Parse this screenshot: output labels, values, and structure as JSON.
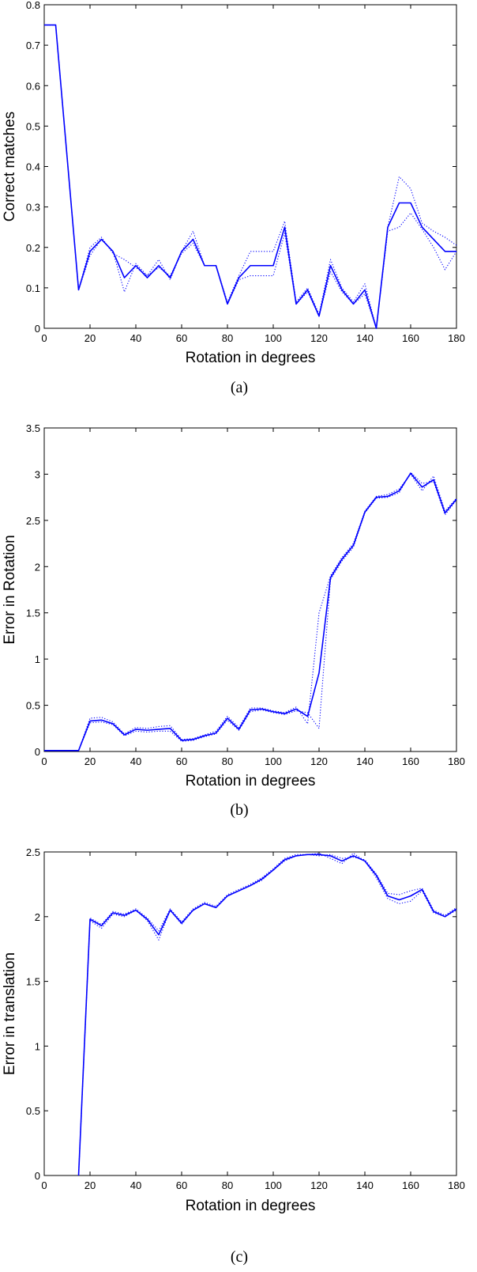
{
  "colors": {
    "series": "#0000ff",
    "axis": "#000000",
    "background": "#ffffff"
  },
  "chart_data": [
    {
      "type": "line",
      "caption": "(a)",
      "xlabel": "Rotation in degrees",
      "ylabel": "Correct matches",
      "xlim": [
        0,
        180
      ],
      "ylim": [
        0,
        0.8
      ],
      "xticks": [
        0,
        20,
        40,
        60,
        80,
        100,
        120,
        140,
        160,
        180
      ],
      "yticks": [
        0,
        0.1,
        0.2,
        0.3,
        0.4,
        0.5,
        0.6,
        0.7,
        0.8
      ],
      "ytick_labels": [
        "0",
        "0.1",
        "0.2",
        "0.3",
        "0.4",
        "0.5",
        "0.6",
        "0.7",
        "0.8"
      ],
      "grid": false,
      "x": [
        0,
        5,
        15,
        20,
        25,
        30,
        35,
        40,
        45,
        50,
        55,
        60,
        65,
        70,
        75,
        80,
        85,
        90,
        95,
        100,
        105,
        110,
        115,
        120,
        125,
        130,
        135,
        140,
        145,
        150,
        155,
        160,
        165,
        170,
        175,
        180
      ],
      "series": [
        {
          "style": "solid",
          "values": [
            0.75,
            0.75,
            0.095,
            0.19,
            0.22,
            0.19,
            0.125,
            0.155,
            0.125,
            0.155,
            0.125,
            0.19,
            0.22,
            0.155,
            0.155,
            0.06,
            0.125,
            0.155,
            0.155,
            0.155,
            0.25,
            0.06,
            0.095,
            0.03,
            0.155,
            0.095,
            0.06,
            0.095,
            0.0,
            0.25,
            0.31,
            0.31,
            0.25,
            0.22,
            0.19,
            0.19
          ]
        },
        {
          "style": "dotted",
          "values": [
            0.75,
            0.75,
            0.095,
            0.18,
            0.22,
            0.19,
            0.09,
            0.16,
            0.13,
            0.17,
            0.12,
            0.19,
            0.24,
            0.155,
            0.155,
            0.065,
            0.13,
            0.19,
            0.19,
            0.19,
            0.265,
            0.065,
            0.1,
            0.035,
            0.17,
            0.1,
            0.065,
            0.11,
            0.0,
            0.25,
            0.375,
            0.345,
            0.26,
            0.24,
            0.225,
            0.205
          ]
        },
        {
          "style": "dotted",
          "values": [
            0.75,
            0.75,
            0.095,
            0.2,
            0.225,
            0.185,
            0.17,
            0.15,
            0.13,
            0.15,
            0.13,
            0.185,
            0.21,
            0.155,
            0.155,
            0.06,
            0.12,
            0.13,
            0.13,
            0.13,
            0.235,
            0.06,
            0.09,
            0.03,
            0.14,
            0.09,
            0.06,
            0.085,
            0.0,
            0.24,
            0.25,
            0.285,
            0.245,
            0.2,
            0.145,
            0.19
          ]
        }
      ]
    },
    {
      "type": "line",
      "caption": "(b)",
      "xlabel": "Rotation in degrees",
      "ylabel": "Error in Rotation",
      "xlim": [
        0,
        180
      ],
      "ylim": [
        0,
        3.5
      ],
      "xticks": [
        0,
        20,
        40,
        60,
        80,
        100,
        120,
        140,
        160,
        180
      ],
      "yticks": [
        0,
        0.5,
        1,
        1.5,
        2,
        2.5,
        3,
        3.5
      ],
      "ytick_labels": [
        "0",
        "0.5",
        "1",
        "1.5",
        "2",
        "2.5",
        "3",
        "3.5"
      ],
      "grid": false,
      "x": [
        0,
        15,
        20,
        25,
        30,
        35,
        40,
        45,
        50,
        55,
        60,
        65,
        70,
        75,
        80,
        85,
        90,
        95,
        100,
        105,
        110,
        115,
        120,
        125,
        130,
        135,
        140,
        145,
        150,
        155,
        160,
        165,
        170,
        175,
        180
      ],
      "series": [
        {
          "style": "solid",
          "values": [
            0.01,
            0.01,
            0.33,
            0.34,
            0.3,
            0.18,
            0.24,
            0.23,
            0.24,
            0.25,
            0.12,
            0.13,
            0.17,
            0.2,
            0.36,
            0.24,
            0.45,
            0.46,
            0.43,
            0.41,
            0.46,
            0.38,
            0.85,
            1.88,
            2.08,
            2.23,
            2.59,
            2.75,
            2.76,
            2.82,
            3.01,
            2.86,
            2.94,
            2.58,
            2.73
          ]
        },
        {
          "style": "dotted",
          "values": [
            0.01,
            0.01,
            0.36,
            0.37,
            0.32,
            0.19,
            0.26,
            0.25,
            0.27,
            0.28,
            0.13,
            0.14,
            0.18,
            0.22,
            0.38,
            0.26,
            0.47,
            0.47,
            0.44,
            0.42,
            0.48,
            0.3,
            1.5,
            1.9,
            2.1,
            2.25,
            2.6,
            2.76,
            2.78,
            2.84,
            3.0,
            2.82,
            2.98,
            2.6,
            2.74
          ]
        },
        {
          "style": "dotted",
          "values": [
            0.01,
            0.01,
            0.31,
            0.32,
            0.29,
            0.17,
            0.22,
            0.21,
            0.22,
            0.22,
            0.11,
            0.12,
            0.16,
            0.19,
            0.34,
            0.23,
            0.43,
            0.45,
            0.42,
            0.4,
            0.44,
            0.42,
            0.25,
            1.86,
            2.06,
            2.21,
            2.58,
            2.74,
            2.75,
            2.8,
            3.02,
            2.9,
            2.92,
            2.56,
            2.72
          ]
        }
      ]
    },
    {
      "type": "line",
      "caption": "(c)",
      "xlabel": "Rotation in degrees",
      "ylabel": "Error in translation",
      "xlim": [
        0,
        180
      ],
      "ylim": [
        0,
        2.5
      ],
      "xticks": [
        0,
        20,
        40,
        60,
        80,
        100,
        120,
        140,
        160,
        180
      ],
      "yticks": [
        0,
        0.5,
        1,
        1.5,
        2,
        2.5
      ],
      "ytick_labels": [
        "0",
        "0.5",
        "1",
        "1.5",
        "2",
        "2.5"
      ],
      "grid": false,
      "x": [
        15,
        20,
        25,
        30,
        35,
        40,
        45,
        50,
        55,
        60,
        65,
        70,
        75,
        80,
        85,
        90,
        95,
        100,
        105,
        110,
        115,
        120,
        125,
        130,
        135,
        140,
        145,
        150,
        155,
        160,
        165,
        170,
        175,
        180
      ],
      "series": [
        {
          "style": "solid",
          "values": [
            0.0,
            1.98,
            1.93,
            2.03,
            2.01,
            2.05,
            1.98,
            1.86,
            2.05,
            1.95,
            2.05,
            2.1,
            2.07,
            2.16,
            2.2,
            2.24,
            2.29,
            2.36,
            2.44,
            2.47,
            2.48,
            2.48,
            2.47,
            2.43,
            2.47,
            2.43,
            2.32,
            2.16,
            2.13,
            2.16,
            2.21,
            2.04,
            2.0,
            2.06
          ]
        },
        {
          "style": "dotted",
          "values": [
            0.0,
            1.97,
            1.91,
            2.02,
            2.0,
            2.05,
            1.97,
            1.82,
            2.05,
            1.94,
            2.05,
            2.1,
            2.07,
            2.16,
            2.2,
            2.24,
            2.28,
            2.36,
            2.43,
            2.47,
            2.48,
            2.49,
            2.45,
            2.41,
            2.49,
            2.43,
            2.3,
            2.14,
            2.1,
            2.12,
            2.2,
            2.03,
            2.0,
            2.05
          ]
        },
        {
          "style": "dotted",
          "values": [
            0.0,
            1.99,
            1.94,
            2.04,
            2.02,
            2.06,
            1.99,
            1.89,
            2.06,
            1.96,
            2.06,
            2.11,
            2.08,
            2.17,
            2.21,
            2.25,
            2.3,
            2.37,
            2.45,
            2.48,
            2.48,
            2.47,
            2.48,
            2.45,
            2.46,
            2.44,
            2.33,
            2.18,
            2.17,
            2.2,
            2.22,
            2.05,
            2.01,
            2.07
          ]
        }
      ]
    }
  ]
}
